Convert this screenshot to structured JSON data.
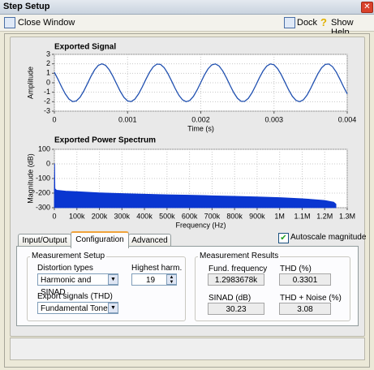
{
  "window": {
    "title": "Step Setup"
  },
  "toolbar": {
    "close_window": "Close Window",
    "dock": "Dock",
    "show_help": "Show Help"
  },
  "charts": [
    {
      "type": "line",
      "title": "Exported Signal",
      "xlabel": "Time (s)",
      "ylabel": "Amplitude",
      "x": [
        0,
        5e-05,
        0.0001,
        0.00015,
        0.0002,
        0.00025,
        0.0003,
        0.00035,
        0.0004,
        0.00045,
        0.0005,
        0.00055,
        0.0006,
        0.00065,
        0.0007,
        0.00075,
        0.0008,
        0.00085,
        0.0009,
        0.00095,
        0.001,
        0.00105,
        0.0011,
        0.00115,
        0.0012,
        0.00125,
        0.0013,
        0.00135,
        0.0014,
        0.00145,
        0.0015,
        0.00155,
        0.0016,
        0.00165,
        0.0017,
        0.00175,
        0.0018,
        0.00185,
        0.0019,
        0.00195,
        0.002,
        0.00205,
        0.0021,
        0.00215,
        0.0022,
        0.00225,
        0.0023,
        0.00235,
        0.0024,
        0.00245,
        0.0025,
        0.00255,
        0.0026,
        0.00265,
        0.0027,
        0.00275,
        0.0028,
        0.00285,
        0.0029,
        0.00295,
        0.003,
        0.00305,
        0.0031,
        0.00315,
        0.0032,
        0.00325,
        0.0033,
        0.00335,
        0.0034,
        0.00345,
        0.0035,
        0.00355,
        0.0036,
        0.00365,
        0.0037,
        0.00375,
        0.0038,
        0.00385,
        0.0039,
        0.00395,
        0.004
      ],
      "series": [
        {
          "color": "#2050b0",
          "values": [
            1.11,
            0.36,
            -0.45,
            -1.18,
            -1.73,
            -1.99,
            -1.92,
            -1.54,
            -0.9,
            -0.12,
            0.68,
            1.37,
            1.84,
            2.0,
            1.84,
            1.37,
            0.68,
            -0.12,
            -0.9,
            -1.54,
            -1.92,
            -1.99,
            -1.73,
            -1.18,
            -0.45,
            0.36,
            1.11,
            1.68,
            1.97,
            1.94,
            1.59,
            0.98,
            0.21,
            -0.6,
            -1.31,
            -1.8,
            -2.0,
            -1.87,
            -1.43,
            -0.76,
            0.03,
            0.83,
            1.48,
            1.89,
            1.99,
            1.77,
            1.25,
            0.53,
            -0.28,
            -1.04,
            -1.63,
            -1.96,
            -1.96,
            -1.64,
            -1.05,
            -0.29,
            0.52,
            1.24,
            1.76,
            1.99,
            1.9,
            1.49,
            0.84,
            0.05,
            -0.75,
            -1.42,
            -1.86,
            -2.0,
            -1.81,
            -1.32,
            -0.61,
            0.19,
            0.96,
            1.58,
            1.94,
            1.98,
            1.69,
            1.13,
            0.38,
            -0.43,
            -1.17
          ]
        }
      ],
      "xlim": [
        0,
        0.004
      ],
      "ylim": [
        -3,
        3
      ],
      "xticks": [
        0,
        0.001,
        0.002,
        0.003,
        0.004
      ],
      "yticks": [
        -3,
        -2,
        -1,
        0,
        1,
        2,
        3
      ],
      "grid": true
    },
    {
      "type": "area",
      "title": "Exported Power Spectrum",
      "xlabel": "Frequency (Hz)",
      "ylabel": "Magnitude (dB)",
      "x": [
        0,
        1300,
        2600,
        10000,
        50000,
        100000,
        200000,
        300000,
        400000,
        500000,
        600000,
        700000,
        800000,
        900000,
        1000000,
        1100000,
        1200000,
        1240000,
        1250000
      ],
      "series": [
        {
          "color": "#0a36d0",
          "values": [
            -175,
            3,
            -170,
            -180,
            -186,
            -190,
            -198,
            -203,
            -207,
            -211,
            -214,
            -218,
            -222,
            -226,
            -231,
            -238,
            -250,
            -262,
            -275
          ]
        }
      ],
      "xlim": [
        0,
        1300000
      ],
      "ylim": [
        -300,
        100
      ],
      "xticks": [
        0,
        {
          "value": 100000,
          "label": "100k"
        },
        {
          "value": 200000,
          "label": "200k"
        },
        {
          "value": 300000,
          "label": "300k"
        },
        {
          "value": 400000,
          "label": "400k"
        },
        {
          "value": 500000,
          "label": "500k"
        },
        {
          "value": 600000,
          "label": "600k"
        },
        {
          "value": 700000,
          "label": "700k"
        },
        {
          "value": 800000,
          "label": "800k"
        },
        {
          "value": 900000,
          "label": "900k"
        },
        {
          "value": 1000000,
          "label": "1M"
        },
        {
          "value": 1100000,
          "label": "1.1M"
        },
        {
          "value": 1200000,
          "label": "1.2M"
        },
        {
          "value": 1300000,
          "label": "1.3M"
        }
      ],
      "yticks": [
        -300,
        -200,
        -100,
        0,
        100
      ],
      "grid": true
    }
  ],
  "tabs": [
    "Input/Output",
    "Configuration",
    "Advanced"
  ],
  "autoscale": {
    "label": "Autoscale magnitude",
    "checked": true
  },
  "measurement_setup": {
    "title": "Measurement Setup",
    "distortion_types": {
      "label": "Distortion types",
      "value": "Harmonic and SINAD"
    },
    "highest_harm": {
      "label": "Highest harm.",
      "value": 19
    },
    "export_signals": {
      "label": "Export signals (THD)",
      "value": "Fundamental Tone"
    }
  },
  "measurement_results": {
    "title": "Measurement Results",
    "fund_frequency": {
      "label": "Fund. frequency",
      "value": "1.2983678k"
    },
    "thd": {
      "label": "THD (%)",
      "value": 0.3301
    },
    "sinad": {
      "label": "SINAD (dB)",
      "value": 30.23
    },
    "thd_noise": {
      "label": "THD + Noise (%)",
      "value": 3.08
    }
  }
}
